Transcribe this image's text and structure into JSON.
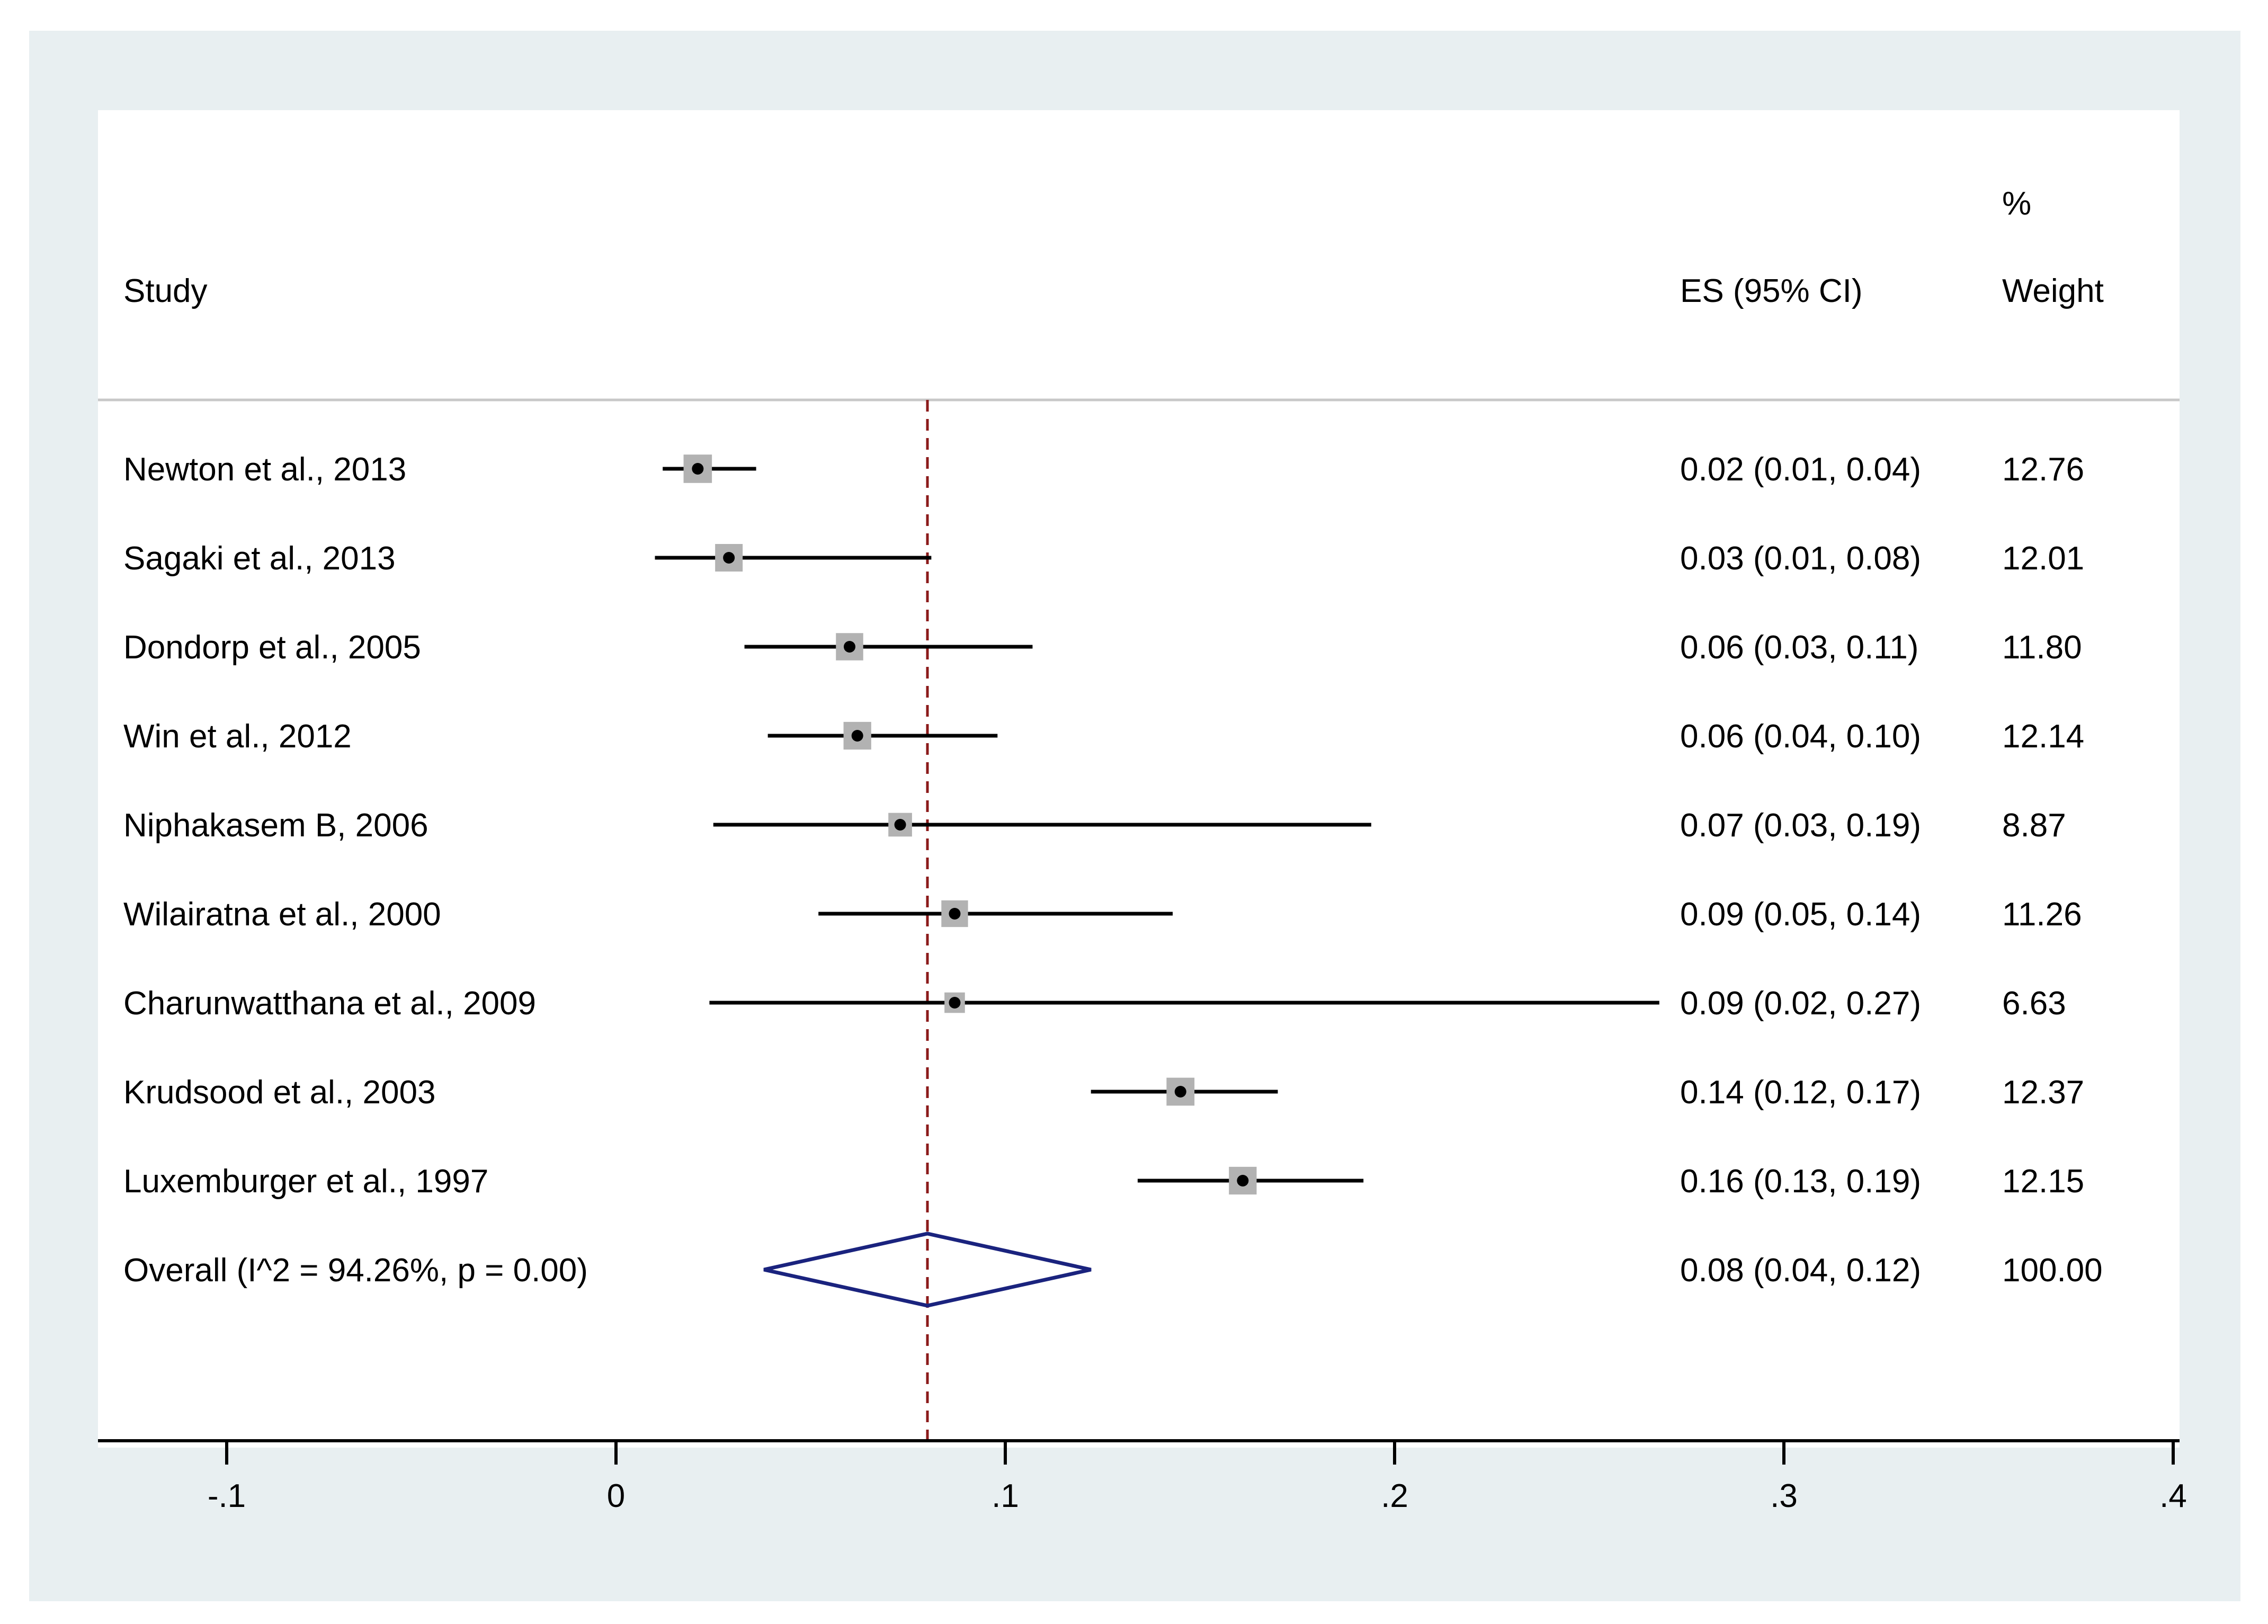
{
  "colors": {
    "frame_bg": "#e8eff1",
    "plot_bg": "#ffffff",
    "box": "#b2b2b2",
    "ci_line": "#000000",
    "diamond": "#1a237e",
    "ref_line": "#8b1a1a",
    "divider": "#c8c8c8"
  },
  "chart_data": {
    "type": "forest",
    "headers": {
      "study": "Study",
      "es": "ES (95% CI)",
      "weight_top": "%",
      "weight": "Weight"
    },
    "xlim": [
      -0.13,
      0.405
    ],
    "xticks": [
      {
        "value": -0.1,
        "label": "-.1"
      },
      {
        "value": 0,
        "label": "0"
      },
      {
        "value": 0.1,
        "label": ".1"
      },
      {
        "value": 0.2,
        "label": ".2"
      },
      {
        "value": 0.3,
        "label": ".3"
      },
      {
        "value": 0.4,
        "label": ".4"
      }
    ],
    "reference_line": 0.08,
    "studies": [
      {
        "name": "Newton et al., 2013",
        "es": 0.021,
        "lo": 0.012,
        "hi": 0.036,
        "es_text": "0.02 (0.01, 0.04)",
        "weight": 12.76,
        "weight_text": "12.76"
      },
      {
        "name": "Sagaki et al., 2013",
        "es": 0.029,
        "lo": 0.01,
        "hi": 0.081,
        "es_text": "0.03 (0.01, 0.08)",
        "weight": 12.01,
        "weight_text": "12.01"
      },
      {
        "name": "Dondorp et al., 2005",
        "es": 0.06,
        "lo": 0.033,
        "hi": 0.107,
        "es_text": "0.06 (0.03, 0.11)",
        "weight": 11.8,
        "weight_text": "11.80"
      },
      {
        "name": "Win et al., 2012",
        "es": 0.062,
        "lo": 0.039,
        "hi": 0.098,
        "es_text": "0.06 (0.04, 0.10)",
        "weight": 12.14,
        "weight_text": "12.14"
      },
      {
        "name": "Niphakasem B, 2006",
        "es": 0.073,
        "lo": 0.025,
        "hi": 0.194,
        "es_text": "0.07 (0.03, 0.19)",
        "weight": 8.87,
        "weight_text": "8.87"
      },
      {
        "name": "Wilairatna et al., 2000",
        "es": 0.087,
        "lo": 0.052,
        "hi": 0.143,
        "es_text": "0.09 (0.05, 0.14)",
        "weight": 11.26,
        "weight_text": "11.26"
      },
      {
        "name": "Charunwatthana et al., 2009",
        "es": 0.087,
        "lo": 0.024,
        "hi": 0.268,
        "es_text": "0.09 (0.02, 0.27)",
        "weight": 6.63,
        "weight_text": "6.63"
      },
      {
        "name": "Krudsood et al., 2003",
        "es": 0.145,
        "lo": 0.122,
        "hi": 0.17,
        "es_text": "0.14 (0.12, 0.17)",
        "weight": 12.37,
        "weight_text": "12.37"
      },
      {
        "name": "Luxemburger et al., 1997",
        "es": 0.161,
        "lo": 0.134,
        "hi": 0.192,
        "es_text": "0.16 (0.13, 0.19)",
        "weight": 12.15,
        "weight_text": "12.15"
      }
    ],
    "overall": {
      "name": "Overall  (I^2 = 94.26%, p = 0.00)",
      "es": 0.08,
      "lo": 0.038,
      "hi": 0.122,
      "es_text": "0.08 (0.04, 0.12)",
      "weight_text": "100.00"
    }
  }
}
